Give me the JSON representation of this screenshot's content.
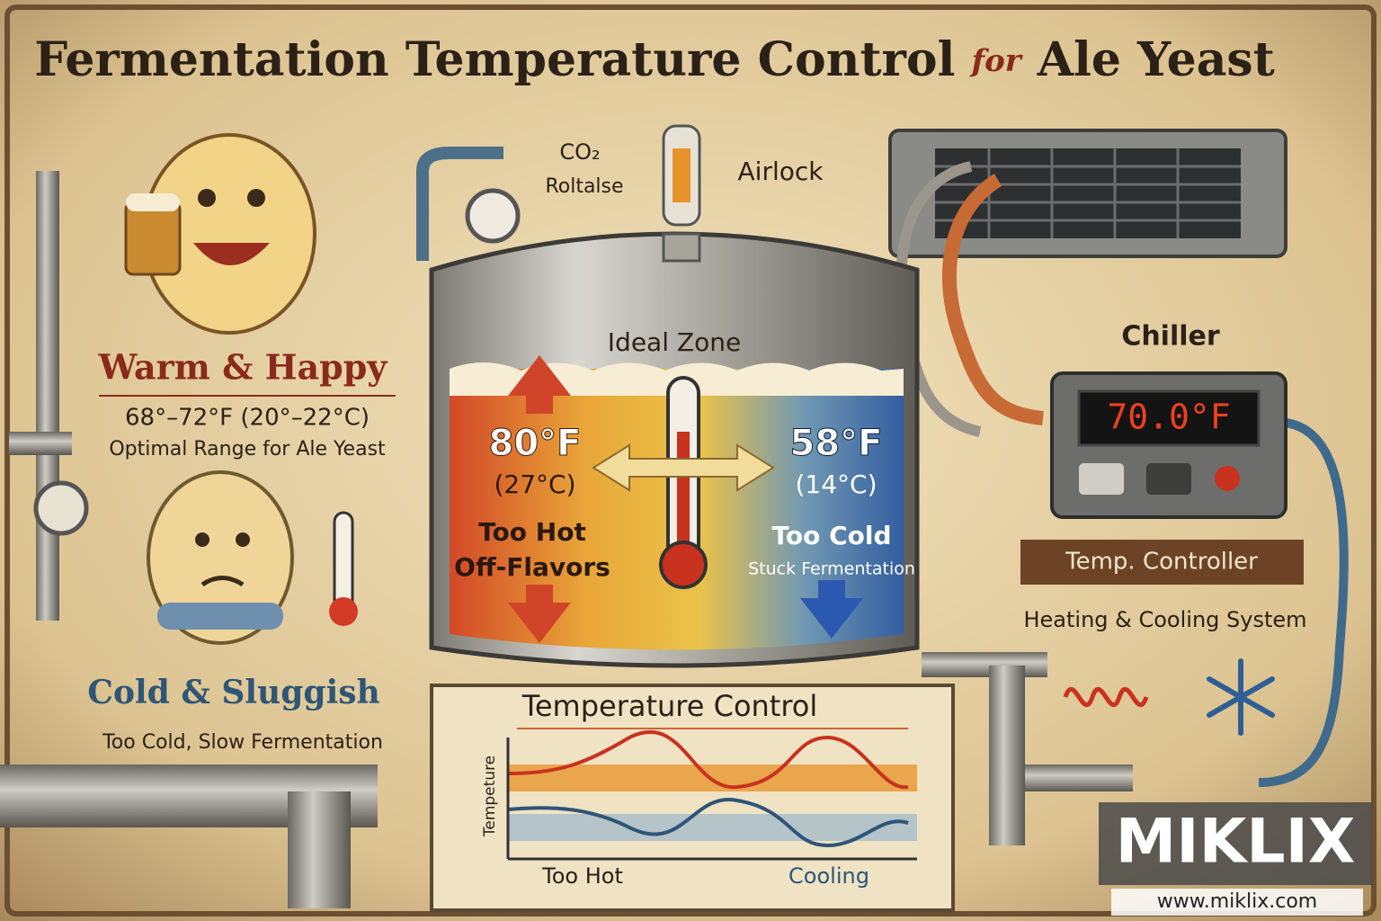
{
  "header": {
    "title": "Fermentation Temperature Control",
    "title_for": "for",
    "title_end": "Ale Yeast"
  },
  "labels": {
    "co2": "CO₂",
    "release": "Roltalse",
    "airlock": "Airlock",
    "chiller": "Chiller",
    "ideal_zone": "Ideal Zone"
  },
  "warm": {
    "title": "Warm & Happy",
    "range": "68°–72°F (20°–22°C)",
    "note": "Optimal Range for Ale Yeast"
  },
  "cold": {
    "title": "Cold & Sluggish",
    "note": "Too Cold, Slow Fermentation"
  },
  "hot_side": {
    "temp_f": "80°F",
    "temp_c": "(27°C)",
    "label": "Too Hot",
    "effect": "Off-Flavors"
  },
  "cold_side": {
    "temp_f": "58°F",
    "temp_c": "(14°C)",
    "label": "Too Cold",
    "effect": "Stuck Fermentation"
  },
  "controller": {
    "display": "70.0°F",
    "title": "Temp. Controller",
    "system": "Heating & Cooling System"
  },
  "panel": {
    "title": "Temperature Control",
    "y_label": "Tempeture",
    "x_left": "Too Hot",
    "x_right": "Cooling"
  },
  "watermark": {
    "brand": "MIKLIX",
    "url": "www.miklix.com"
  }
}
